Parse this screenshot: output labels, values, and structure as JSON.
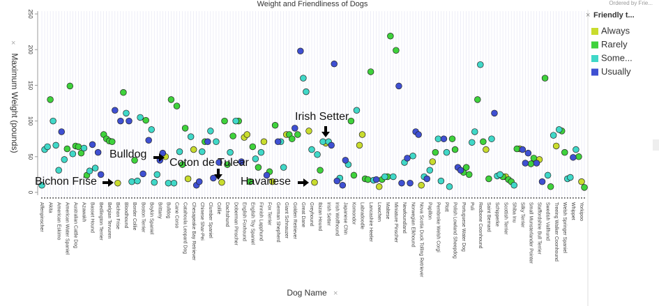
{
  "chart_data": {
    "type": "scatter",
    "title": "Weight and Friendliness of Dogs",
    "subtitle": "Ordered by Frie...",
    "y_label": "Maximum Weight (pounds)",
    "x_label": "Dog Name",
    "legend_title": "Friendly t...",
    "legend": "right",
    "grid": true,
    "ylim": [
      0,
      250
    ],
    "yticks": [
      0,
      50,
      100,
      150,
      200,
      250
    ],
    "annotations": [
      "Bichon Frise",
      "Bulldog",
      "Coton de Tulear",
      "Irish Setter",
      "Havanese"
    ],
    "categories": [
      "Affenpinscher",
      null,
      null,
      "Akita",
      null,
      null,
      "American Eskimo",
      null,
      null,
      "American Water Spaniel",
      null,
      null,
      "Australian Cattle Dog",
      null,
      null,
      "Azawakh",
      null,
      null,
      "Basset Hound",
      null,
      null,
      "Bedlington Terrier",
      null,
      null,
      "Belgian Tervuren",
      null,
      null,
      "Bichon Frise",
      null,
      null,
      "Bloodhound",
      null,
      null,
      "Border Collie",
      null,
      null,
      "Boston Terrier",
      null,
      null,
      "Boykin Spaniel",
      null,
      null,
      "Brittany",
      null,
      null,
      "Bulldog",
      null,
      null,
      "Cane Corso",
      null,
      null,
      "Catahoula Leopard Dog",
      null,
      null,
      "Chesapeake Bay Retriever",
      null,
      null,
      "Chinese Shar-Pei",
      null,
      null,
      "Clumber Spaniel",
      null,
      null,
      "Collie",
      null,
      null,
      "Dachshund",
      null,
      null,
      "Doberman Pinscher",
      null,
      null,
      "English Foxhound",
      null,
      null,
      "English Toy Spaniel",
      null,
      null,
      "Finnish Lapphund",
      null,
      null,
      "Fox Terrier",
      null,
      null,
      "German Shepherd",
      null,
      null,
      "Giant Schnauzer",
      null,
      null,
      "Golden Retriever",
      null,
      null,
      "Great Dane",
      null,
      null,
      "Greyhound",
      null,
      null,
      "Ibizan Hound",
      null,
      null,
      "Irish Setter",
      null,
      null,
      "Irish Wolfhound",
      null,
      null,
      "Japanese Chin",
      null,
      null,
      "Komondor",
      null,
      null,
      "Labradoodle",
      null,
      null,
      "Lancashire Heeler",
      null,
      null,
      "Lowchen",
      null,
      null,
      "Maltese",
      null,
      null,
      "Miniature Pinscher",
      null,
      null,
      "Newfoundland",
      null,
      null,
      "Norwegian Elkhound",
      null,
      null,
      "Nova Scotia Duck Tolling Retriever",
      null,
      null,
      "Papillon",
      null,
      null,
      "Pembroke Welsh Corgi",
      null,
      null,
      "Plott",
      null,
      null,
      "Polish Lowland Sheepdog",
      null,
      null,
      "Portuguese Water Dog",
      null,
      null,
      "Puli",
      null,
      null,
      "Redbone Coonhound",
      null,
      null,
      "Saint Bernard",
      null,
      null,
      "Schipperke",
      null,
      null,
      "Scottish Terrier",
      null,
      null,
      "Shiba Inu",
      null,
      null,
      "Silky Terrier",
      null,
      null,
      "Small Munsterlander Pointer",
      null,
      null,
      "Staffordshire Bull Terrier",
      null,
      null,
      "Swedish Vallhund",
      null,
      null,
      "Treeing Walker Coonhound",
      null,
      null,
      "Welsh Springer Spaniel",
      null,
      null,
      "Whippet",
      null,
      null,
      "Yorkipoo",
      null
    ],
    "series": [
      {
        "name": "Always",
        "color": "#c9dc2e",
        "values": [
          null,
          null,
          null,
          null,
          null,
          null,
          null,
          null,
          null,
          null,
          null,
          null,
          null,
          null,
          null,
          null,
          null,
          null,
          null,
          null,
          null,
          null,
          null,
          null,
          null,
          null,
          null,
          13,
          null,
          null,
          null,
          null,
          null,
          null,
          null,
          null,
          null,
          null,
          null,
          null,
          null,
          null,
          null,
          null,
          50,
          null,
          null,
          null,
          null,
          null,
          null,
          null,
          19,
          null,
          60,
          null,
          null,
          null,
          null,
          null,
          null,
          null,
          null,
          null,
          14,
          null,
          null,
          null,
          null,
          null,
          null,
          null,
          77,
          81,
          null,
          null,
          null,
          null,
          null,
          71,
          null,
          null,
          15,
          null,
          null,
          null,
          null,
          81,
          null,
          null,
          null,
          null,
          null,
          null,
          null,
          86,
          null,
          14,
          null,
          null,
          null,
          69,
          null,
          null,
          null,
          null,
          null,
          null,
          null,
          null,
          null,
          null,
          null,
          66,
          81,
          null,
          null,
          null,
          null,
          null,
          8,
          null,
          null,
          null,
          null,
          null,
          null,
          null,
          null,
          null,
          null,
          null,
          null,
          null,
          null,
          10,
          null,
          null,
          null,
          43,
          null,
          null,
          null,
          null,
          null,
          null,
          null,
          null,
          null,
          null,
          null,
          null,
          null,
          null,
          null,
          null,
          null,
          null,
          60,
          null,
          null,
          null,
          null,
          null,
          null,
          22,
          null,
          null,
          null,
          null,
          61,
          null,
          null,
          null,
          null,
          null,
          null,
          46,
          null,
          null,
          null,
          null,
          null,
          65,
          null,
          null,
          null,
          null,
          null,
          null,
          null,
          null,
          15,
          null
        ]
      },
      {
        "name": "Rarely",
        "color": "#3fd23c",
        "values": [
          null,
          null,
          null,
          130,
          null,
          null,
          null,
          null,
          null,
          61,
          149,
          null,
          65,
          64,
          55,
          null,
          24,
          null,
          null,
          null,
          null,
          null,
          81,
          75,
          72,
          71,
          null,
          null,
          null,
          140,
          null,
          null,
          null,
          45,
          null,
          null,
          null,
          101,
          null,
          null,
          null,
          null,
          null,
          null,
          null,
          null,
          130,
          null,
          121,
          null,
          39,
          90,
          null,
          null,
          null,
          null,
          null,
          null,
          71,
          null,
          null,
          null,
          null,
          null,
          null,
          100,
          39,
          null,
          79,
          null,
          100,
          null,
          null,
          null,
          15,
          64,
          null,
          35,
          null,
          null,
          null,
          29,
          null,
          94,
          null,
          null,
          null,
          null,
          81,
          75,
          null,
          81,
          null,
          null,
          null,
          null,
          null,
          null,
          null,
          31,
          null,
          null,
          null,
          null,
          null,
          null,
          null,
          null,
          null,
          null,
          100,
          24,
          null,
          null,
          null,
          19,
          18,
          169,
          null,
          null,
          null,
          18,
          null,
          22,
          219,
          null,
          199,
          null,
          null,
          null,
          null,
          null,
          null,
          null,
          null,
          null,
          null,
          null,
          null,
          null,
          56,
          null,
          null,
          null,
          null,
          null,
          75,
          60,
          null,
          null,
          28,
          35,
          25,
          null,
          null,
          130,
          null,
          71,
          null,
          19,
          null,
          null,
          null,
          null,
          22,
          null,
          18,
          15,
          null,
          61,
          null,
          null,
          null,
          null,
          40,
          48,
          null,
          null,
          null,
          160,
          null,
          8,
          null,
          null,
          null,
          86,
          56,
          null,
          null,
          null,
          null,
          50,
          null,
          7
        ]
      },
      {
        "name": "Some...",
        "color": "#40d8c8",
        "values": [
          10,
          60,
          64,
          null,
          100,
          66,
          31,
          null,
          46,
          null,
          null,
          54,
          null,
          null,
          null,
          62,
          null,
          30,
          null,
          34,
          null,
          null,
          null,
          null,
          null,
          null,
          null,
          null,
          null,
          null,
          111,
          null,
          15,
          null,
          16,
          105,
          null,
          null,
          null,
          88,
          14,
          25,
          null,
          null,
          null,
          13,
          null,
          13,
          null,
          57,
          null,
          null,
          null,
          78,
          null,
          null,
          null,
          57,
          null,
          null,
          86,
          null,
          71,
          null,
          null,
          null,
          null,
          56,
          null,
          100,
          null,
          null,
          null,
          null,
          null,
          null,
          47,
          null,
          56,
          null,
          null,
          null,
          null,
          null,
          null,
          71,
          35,
          null,
          null,
          null,
          null,
          null,
          null,
          160,
          141,
          null,
          60,
          null,
          53,
          null,
          71,
          null,
          71,
          null,
          null,
          null,
          20,
          null,
          null,
          39,
          null,
          null,
          115,
          null,
          null,
          null,
          null,
          null,
          17,
          null,
          null,
          null,
          22,
          null,
          null,
          22,
          null,
          null,
          null,
          42,
          null,
          null,
          51,
          null,
          null,
          null,
          22,
          null,
          31,
          null,
          null,
          75,
          16,
          null,
          56,
          8,
          null,
          null,
          null,
          null,
          null,
          null,
          null,
          70,
          85,
          null,
          179,
          null,
          null,
          null,
          75,
          null,
          23,
          25,
          null,
          null,
          null,
          null,
          10,
          null,
          null,
          null,
          null,
          null,
          null,
          null,
          null,
          null,
          null,
          null,
          24,
          null,
          80,
          null,
          88,
          null,
          null,
          19,
          21,
          null,
          60,
          null,
          null,
          null
        ]
      },
      {
        "name": "Usually",
        "color": "#3f50d2",
        "values": [
          null,
          null,
          null,
          null,
          null,
          null,
          null,
          85,
          null,
          null,
          null,
          null,
          null,
          null,
          null,
          null,
          null,
          null,
          67,
          null,
          56,
          25,
          null,
          null,
          null,
          null,
          115,
          null,
          100,
          null,
          null,
          100,
          null,
          null,
          null,
          null,
          26,
          null,
          73,
          null,
          null,
          null,
          45,
          55,
          null,
          null,
          null,
          null,
          null,
          null,
          null,
          null,
          null,
          null,
          null,
          10,
          15,
          null,
          null,
          71,
          null,
          20,
          null,
          42,
          null,
          null,
          null,
          null,
          null,
          null,
          null,
          43,
          null,
          null,
          null,
          null,
          null,
          null,
          null,
          null,
          24,
          null,
          null,
          null,
          71,
          null,
          null,
          null,
          null,
          null,
          90,
          null,
          198,
          null,
          null,
          null,
          null,
          null,
          null,
          null,
          null,
          null,
          null,
          66,
          180,
          16,
          null,
          10,
          45,
          null,
          null,
          null,
          null,
          null,
          null,
          null,
          null,
          null,
          null,
          18,
          null,
          null,
          null,
          null,
          null,
          null,
          null,
          149,
          13,
          null,
          48,
          13,
          null,
          85,
          81,
          null,
          null,
          19,
          null,
          null,
          null,
          null,
          null,
          75,
          null,
          null,
          null,
          null,
          35,
          31,
          null,
          null,
          null,
          null,
          null,
          null,
          null,
          null,
          null,
          null,
          null,
          111,
          null,
          null,
          null,
          null,
          null,
          null,
          null,
          null,
          null,
          60,
          41,
          55,
          null,
          null,
          41,
          null,
          15,
          null,
          null,
          null,
          null,
          null,
          null,
          null,
          null,
          null,
          null,
          49,
          null,
          null,
          null,
          null
        ]
      }
    ]
  }
}
